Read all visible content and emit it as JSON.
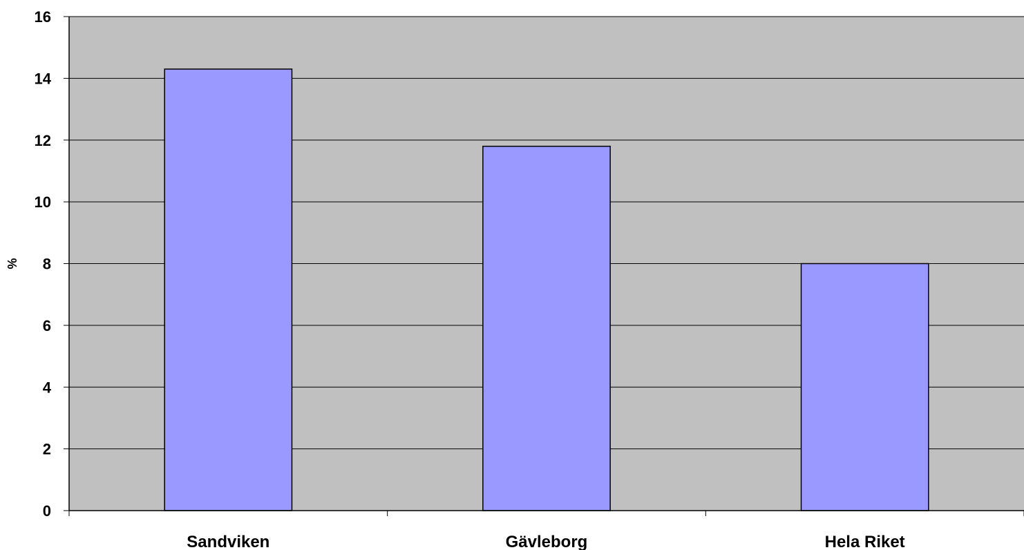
{
  "chart_data": {
    "type": "bar",
    "title": "",
    "xlabel": "",
    "ylabel": "%",
    "categories": [
      "Sandviken",
      "Gävleborg",
      "Hela Riket"
    ],
    "values": [
      14.3,
      11.8,
      8.0
    ],
    "ylim": [
      0,
      16
    ],
    "yticks": [
      "0",
      "2",
      "4",
      "6",
      "8",
      "10",
      "12",
      "14",
      "16"
    ],
    "grid": true,
    "legend": "none",
    "colors": {
      "plot_background": "#c0c0c0",
      "bar_fill": "#9999ff",
      "bar_stroke": "#000000",
      "grid": "#000000"
    }
  }
}
